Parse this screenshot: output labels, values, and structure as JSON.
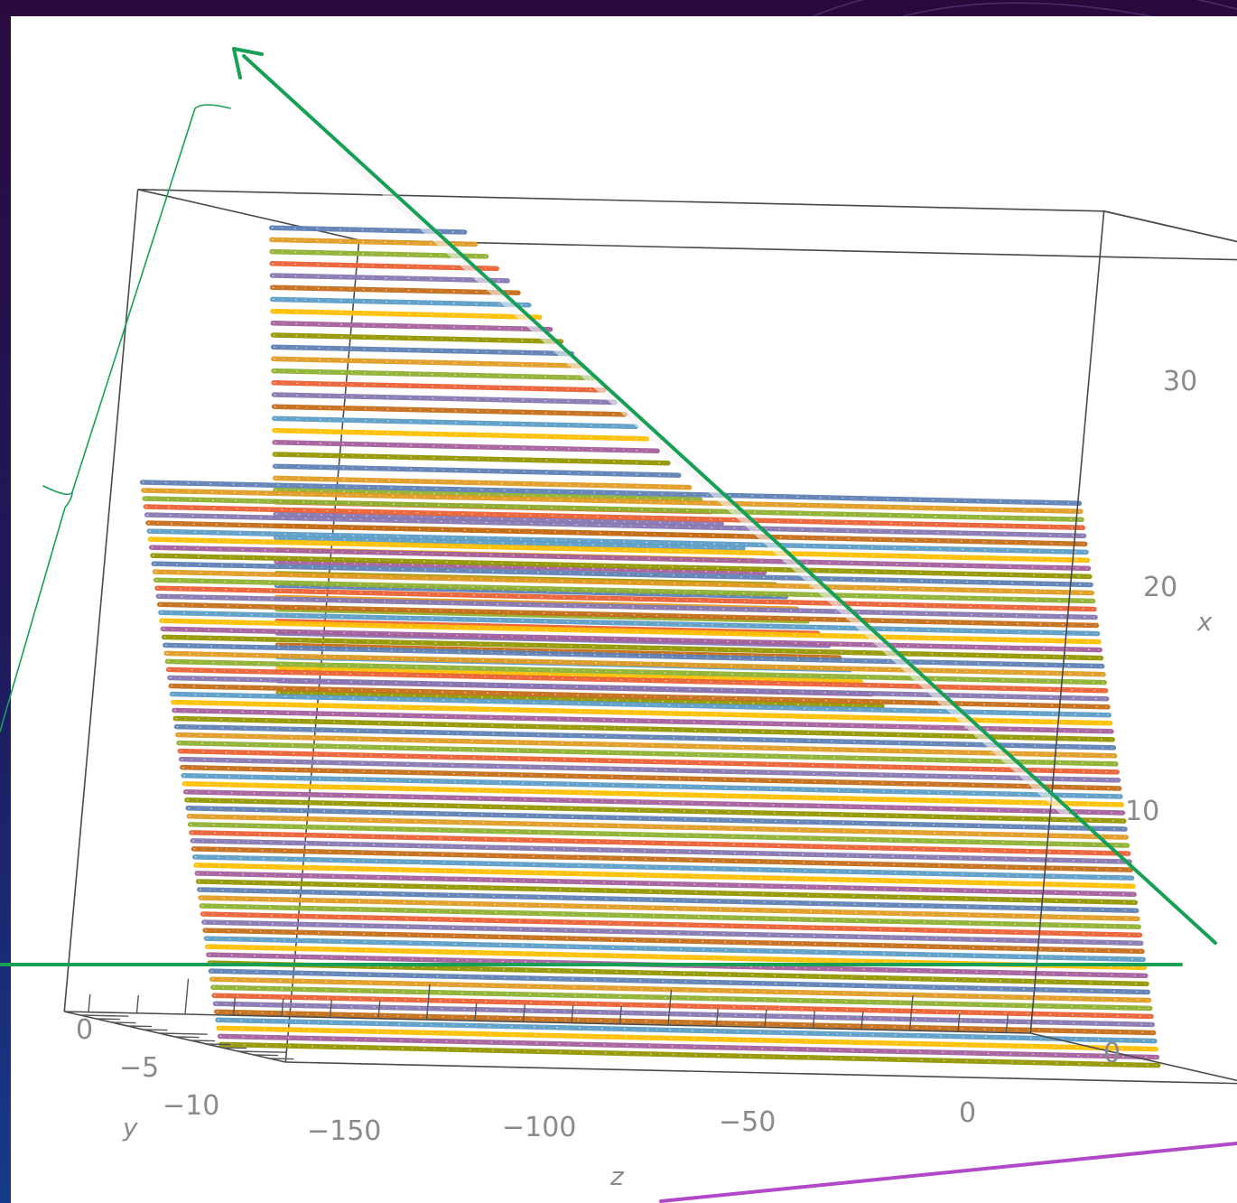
{
  "chart_data": {
    "type": "line",
    "title": "",
    "xlabel": "x",
    "ylabel": "y",
    "zlabel": "z",
    "x_ticks": [
      "0",
      "10",
      "20",
      "30"
    ],
    "y_ticks": [
      "0",
      "−5",
      "−10"
    ],
    "z_ticks": [
      "−150",
      "−100",
      "−50",
      "0"
    ],
    "xlim": [
      0,
      37
    ],
    "ylim": [
      -11,
      3
    ],
    "zlim": [
      -175,
      25
    ],
    "grid": false,
    "legend": "none",
    "series_palette": [
      "#5e81b5",
      "#e19c24",
      "#8fb032",
      "#eb6235",
      "#8778b3",
      "#c56e1a",
      "#5d9ec7",
      "#ffbf00",
      "#a5609d",
      "#929600"
    ],
    "lower_group": {
      "x_start": 0,
      "x_end": 24,
      "line_count": 70,
      "z_far": -172,
      "z_near": 22
    },
    "upper_group": {
      "x_start": 16,
      "x_end": 36,
      "line_count": 40,
      "z_far_at_bottom": -170,
      "z_far_at_top": -160,
      "z_near_at_bottom": -45,
      "z_near_at_top": -120
    }
  },
  "annotations": {
    "line_color": "#17a055",
    "highlight_color": "#f2f2f2",
    "accent_color": "#b048c8"
  }
}
